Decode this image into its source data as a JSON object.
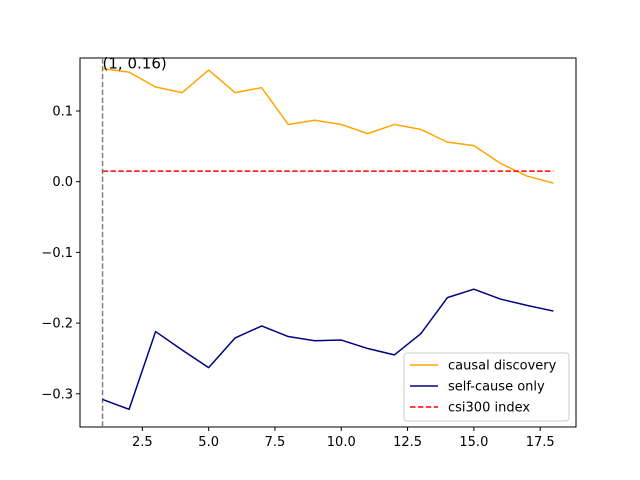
{
  "chart_data": {
    "type": "line",
    "title": "",
    "xlabel": "",
    "ylabel": "",
    "xlim": [
      0.15,
      18.85
    ],
    "ylim": [
      -0.347,
      0.175
    ],
    "x_ticks": [
      2.5,
      5.0,
      7.5,
      10.0,
      12.5,
      15.0,
      17.5
    ],
    "x_tick_labels": [
      "2.5",
      "5.0",
      "7.5",
      "10.0",
      "12.5",
      "15.0",
      "17.5"
    ],
    "y_ticks": [
      0.1,
      0.0,
      -0.1,
      -0.2,
      -0.3
    ],
    "y_tick_labels": [
      "0.1",
      "0.0",
      "−0.1",
      "−0.2",
      "−0.3"
    ],
    "grid": false,
    "legend_position": "lower-right",
    "x": [
      1,
      2,
      3,
      4,
      5,
      6,
      7,
      8,
      9,
      10,
      11,
      12,
      13,
      14,
      15,
      16,
      17,
      18
    ],
    "series": [
      {
        "name": "causal discovery",
        "color": "#ffa500",
        "style": "solid",
        "values": [
          0.16,
          0.155,
          0.134,
          0.126,
          0.158,
          0.126,
          0.133,
          0.081,
          0.087,
          0.081,
          0.068,
          0.081,
          0.074,
          0.056,
          0.051,
          0.026,
          0.008,
          -0.002
        ]
      },
      {
        "name": "self-cause only",
        "color": "#000080",
        "style": "solid",
        "values": [
          -0.308,
          -0.322,
          -0.212,
          -0.238,
          -0.263,
          -0.221,
          -0.204,
          -0.219,
          -0.225,
          -0.224,
          -0.236,
          -0.245,
          -0.215,
          -0.164,
          -0.152,
          -0.166,
          -0.175,
          -0.183
        ]
      },
      {
        "name": "csi300 index",
        "color": "#ff0000",
        "style": "dashed",
        "values": [
          0.015,
          0.015,
          0.015,
          0.015,
          0.015,
          0.015,
          0.015,
          0.015,
          0.015,
          0.015,
          0.015,
          0.015,
          0.015,
          0.015,
          0.015,
          0.015,
          0.015,
          0.015
        ]
      }
    ],
    "vline": {
      "x": 1,
      "color": "#808080",
      "style": "dashed"
    },
    "annotation": {
      "text": "(1, 0.16)",
      "x": 1,
      "y": 0.16
    }
  }
}
